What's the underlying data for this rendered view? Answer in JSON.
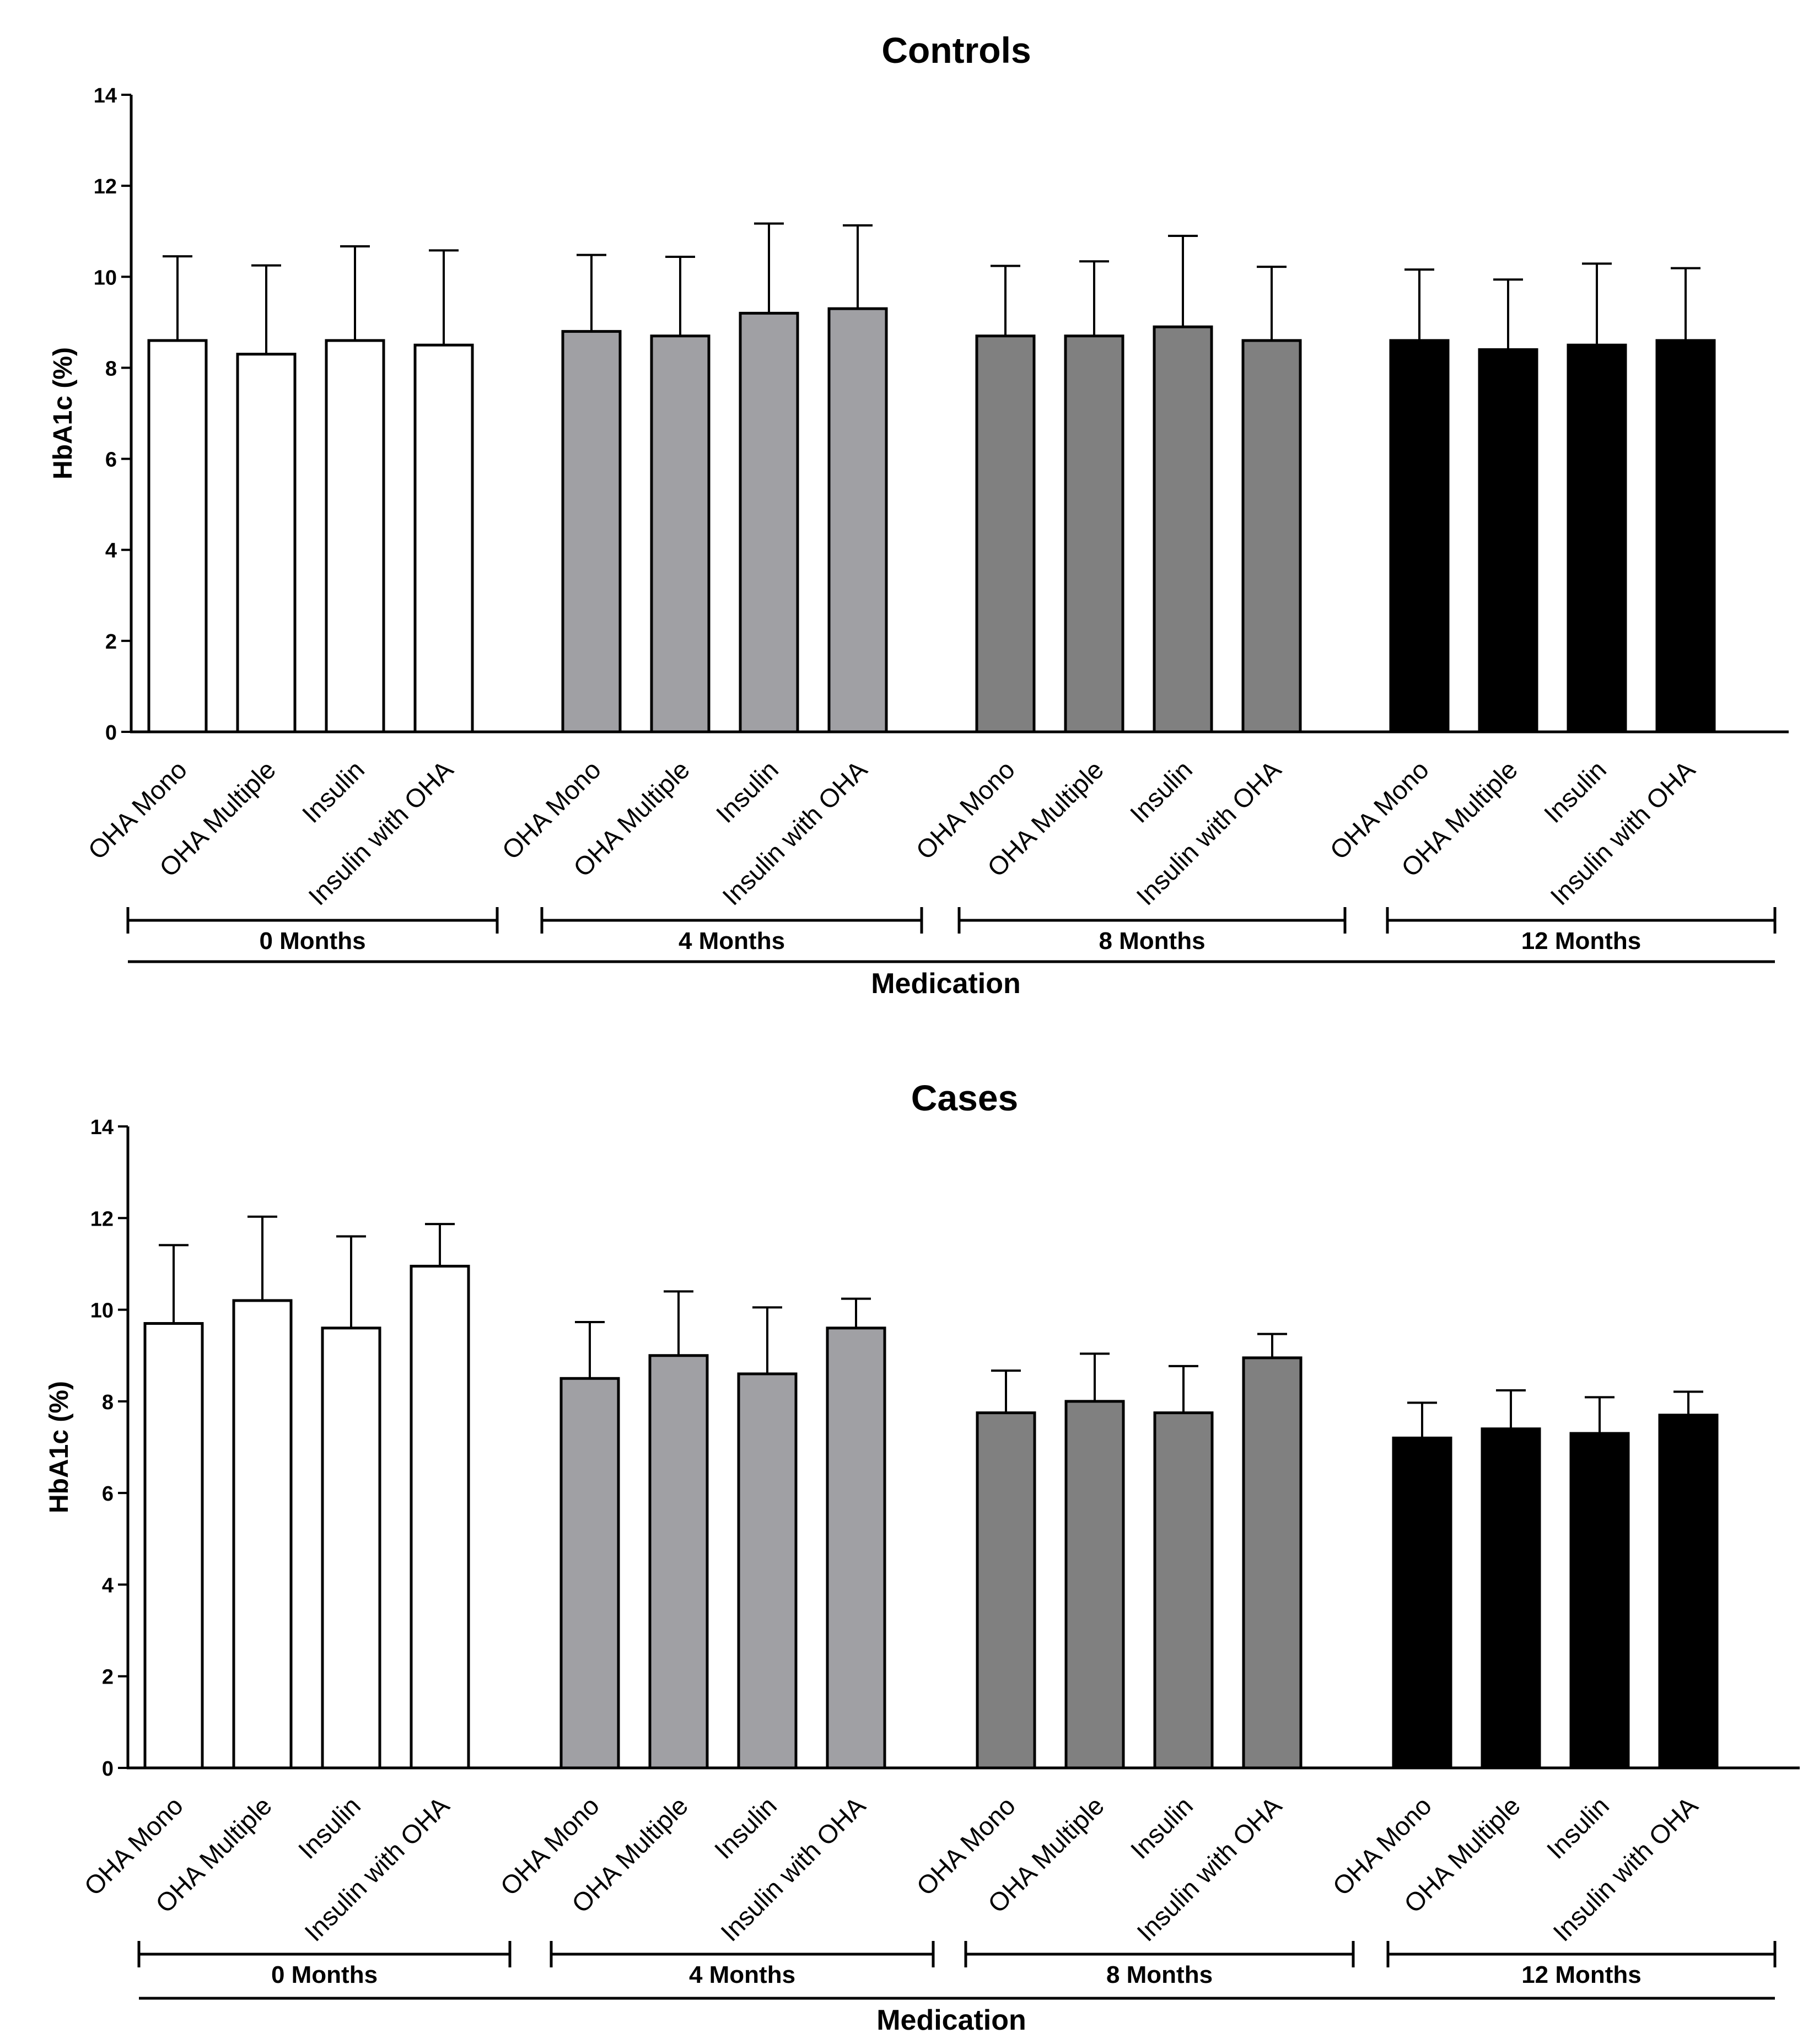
{
  "chart_data": [
    {
      "type": "bar",
      "title": "Controls",
      "ylabel": "HbA1c (%)",
      "xlabel": "Medication",
      "ylim": [
        0,
        14
      ],
      "yticks": [
        0,
        2,
        4,
        6,
        8,
        10,
        12,
        14
      ],
      "categories": [
        "OHA Mono",
        "OHA Multiple",
        "Insulin",
        "Insulin with OHA"
      ],
      "series": [
        {
          "name": "0 Months",
          "color": "#ffffff",
          "values": [
            8.6,
            8.3,
            8.6,
            8.5
          ],
          "errors": [
            1.85,
            1.95,
            2.07,
            2.08
          ]
        },
        {
          "name": "4 Months",
          "color": "#a0a0a4",
          "values": [
            8.8,
            8.7,
            9.2,
            9.3
          ],
          "errors": [
            1.68,
            1.74,
            1.97,
            1.83
          ]
        },
        {
          "name": "8 Months",
          "color": "#808080",
          "values": [
            8.7,
            8.7,
            8.9,
            8.6
          ],
          "errors": [
            1.54,
            1.64,
            2.0,
            1.62
          ]
        },
        {
          "name": "12 Months",
          "color": "#000000",
          "values": [
            8.6,
            8.4,
            8.5,
            8.6
          ],
          "errors": [
            1.56,
            1.54,
            1.79,
            1.59
          ]
        }
      ]
    },
    {
      "type": "bar",
      "title": "Cases",
      "ylabel": "HbA1c (%)",
      "xlabel": "Medication",
      "ylim": [
        0,
        14
      ],
      "yticks": [
        0,
        2,
        4,
        6,
        8,
        10,
        12,
        14
      ],
      "categories": [
        "OHA Mono",
        "OHA Multiple",
        "Insulin",
        "Insulin with OHA"
      ],
      "series": [
        {
          "name": "0 Months",
          "color": "#ffffff",
          "values": [
            9.7,
            10.2,
            9.6,
            10.95
          ],
          "errors": [
            1.71,
            1.83,
            2.0,
            0.92
          ]
        },
        {
          "name": "4 Months",
          "color": "#a0a0a4",
          "values": [
            8.5,
            9.0,
            8.6,
            9.6
          ],
          "errors": [
            1.23,
            1.4,
            1.45,
            0.64
          ]
        },
        {
          "name": "8 Months",
          "color": "#808080",
          "values": [
            7.75,
            8.0,
            7.75,
            8.95
          ],
          "errors": [
            0.92,
            1.04,
            1.02,
            0.52
          ]
        },
        {
          "name": "12 Months",
          "color": "#000000",
          "values": [
            7.2,
            7.4,
            7.3,
            7.7
          ],
          "errors": [
            0.77,
            0.84,
            0.79,
            0.51
          ]
        }
      ]
    }
  ]
}
